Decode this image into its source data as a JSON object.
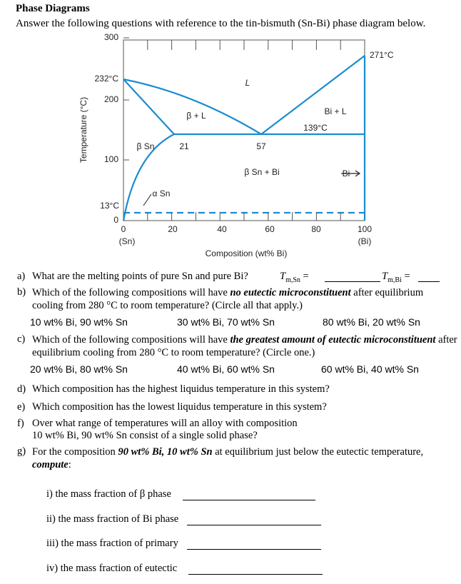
{
  "header": {
    "title": "Phase Diagrams",
    "intro": "Answer the following questions with reference to the tin-bismuth (Sn-Bi) phase diagram below."
  },
  "figure": {
    "y_label": "Temperature (°C)",
    "x_label": "Composition (wt% Bi)",
    "yticks": [
      "0",
      "100",
      "200",
      "300"
    ],
    "xticks": [
      "0",
      "20",
      "40",
      "60",
      "80",
      "100"
    ],
    "x_end_labels": [
      "(Sn)",
      "(Bi)"
    ],
    "annotations": [
      "232°C",
      "13°C",
      "271°C",
      "139°C",
      "L",
      "β + L",
      "Bi + L",
      "β Sn",
      "21",
      "57",
      "β Sn + Bi",
      "Bi",
      "α Sn"
    ]
  },
  "questions": [
    {
      "label": "a)",
      "text": "What are the melting points of pure Sn and pure Bi?",
      "answers": [
        {
          "symbol": "T",
          "subscript": "m,Sn",
          "equals": "="
        },
        {
          "symbol": "T",
          "subscript": "m,Bi",
          "equals": "="
        }
      ]
    },
    {
      "label": "b)",
      "before": "Which of the following compositions will have",
      "emphasis": "no eutectic microconstituent",
      "after": "after equilibrium cooling from 280 °C to room temperature? (Circle all that apply.)",
      "choices": [
        "10 wt% Bi, 90 wt% Sn",
        "30 wt% Bi, 70 wt% Sn",
        "80 wt% Bi, 20 wt% Sn"
      ]
    },
    {
      "label": "c)",
      "before": "Which of the following compositions will have",
      "emphasis": "the greatest amount of eutectic microconstituent",
      "after": "after equilibrium cooling from 280 °C to room temperature? (Circle one.)",
      "choices": [
        "20 wt% Bi, 80 wt% Sn",
        "40 wt% Bi, 60 wt% Sn",
        "60 wt% Bi, 40 wt% Sn"
      ]
    },
    {
      "label": "d)",
      "text": "Which composition has the highest liquidus temperature in this system?"
    },
    {
      "label": "e)",
      "text": "Which composition has the lowest liquidus temperature in this system?"
    },
    {
      "label": "f)",
      "lines": [
        "Over what range of temperatures will an alloy with composition",
        "10 wt% Bi, 90 wt% Sn consist of a single solid phase?"
      ]
    },
    {
      "label": "g)",
      "before": "For the composition",
      "emphasis": "90 wt% Bi, 10 wt% Sn",
      "after": "at equilibrium just below the eutectic temperature,",
      "emphasis2": "compute",
      "end": ":",
      "subitems": [
        "i) the mass fraction of β phase",
        "ii) the mass fraction of Bi phase",
        "iii) the mass fraction of primary",
        "iv) the mass fraction of eutectic"
      ]
    }
  ]
}
